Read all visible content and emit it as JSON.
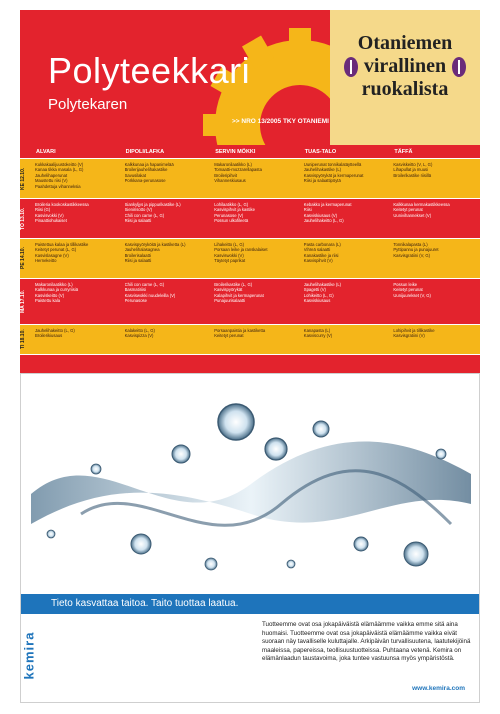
{
  "header": {
    "title": "Polyteekkari",
    "subtitle": "Polytekaren",
    "issue": ">> NRO 13/2005 TKY OTANIEMI",
    "right_box": {
      "line1": "Otaniemen",
      "line2": "virallinen",
      "line3": "ruokalista"
    }
  },
  "menu": {
    "columns": [
      "ALVARI",
      "DIPOLI/LAFKA",
      "SERVIN MÖKKI",
      "TUAS-TALO",
      "TÄFFÄ"
    ],
    "rows": [
      {
        "day": "KE 12.10.",
        "cells": [
          [
            "Kukkakaalijuustokeitto (V)",
            "Kanaa tikka masala (L, G)",
            "Jauhelihaperunat",
            "Maustettu riisi (V)",
            "Paahdettuja vihanneksia"
          ],
          [
            "Kalkkunaa ja hapanimelää",
            "Broilerijauhelihakastike",
            "Savusilakat",
            "Porkkana-perunasose"
          ],
          [
            "Makaronilaatikko (L)",
            "Tomaatti-mozzarellapasta",
            "Broileripihvit",
            "Vihanneskiusaus"
          ],
          [
            "Uuniperunat tonnikalatäytteellä",
            "Jauhelihakastike (L)",
            "Kasvispyörykät ja kermaperunat",
            "Riisi ja salaattipöytä"
          ],
          [
            "Kasviskeitto (V, L, G)",
            "Lihapullat ja muusi",
            "Broilerikastike riisillä"
          ]
        ]
      },
      {
        "day": "TO 13.10.",
        "cells": [
          [
            "Broileria kookoskastikkeessa",
            "Riisi (G)",
            "Kasvisvokki (V)",
            "Pinaattiohukaiset"
          ],
          [
            "Siankyljys ja pippurikastike (L)",
            "Sienirisotto (V)",
            "Chili con carne (L, G)",
            "Riisi ja salaatti"
          ],
          [
            "Lohilaatikko (L, G)",
            "Kasvispihvit ja kastike",
            "Perunasose (V)",
            "Possun ulkofileetä"
          ],
          [
            "Kebakko ja kermaperunat",
            "Riisi",
            "Kasviskiusaus (V)",
            "Jauhelihakeitto (L, G)"
          ],
          [
            "Kalkkunaa kermakastikkeessa",
            "Keitetyt perunat",
            "Uunivihannekset (V)"
          ]
        ]
      },
      {
        "day": "PE 14.10.",
        "cells": [
          [
            "Paistettua kalaa ja tillikastike",
            "Keitetyt perunat (L, G)",
            "Kasvislasagne (V)",
            "Hernekeitto"
          ],
          [
            "Kasvispyöryköitä ja kastiketta (L)",
            "Jauhelihalasagnea",
            "Broilerisalaatti",
            "Riisi ja salaatti"
          ],
          [
            "Lihakeitto (L, G)",
            "Porsaan leike ja ranskalaiset",
            "Kasviswokki (V)",
            "Täytetyt paprikat"
          ],
          [
            "Pasta carbonara (L)",
            "Vihreä salaatti",
            "Kanakastike ja riisi",
            "Kasvispihvit (V)"
          ],
          [
            "Tonnikalapasta (L)",
            "Pyttipannu ja punajuuret",
            "Kasvisgratiini (V, G)"
          ]
        ]
      },
      {
        "day": "MA 17.10.",
        "cells": [
          [
            "Makaronilaatikko (L)",
            "Kalkkunaa ja curryriisiä",
            "Kasviskeitto (V)",
            "Paistettu kala"
          ],
          [
            "Chili con carne (L, G)",
            "Basmatiriisi",
            "Kasviswokki nuudeleilla (V)",
            "Perunasose"
          ],
          [
            "Broilerikastike (L, G)",
            "Kasvispyörykät",
            "Kalapihvit ja kermaperunat",
            "Punajuurisalaatti"
          ],
          [
            "Jauhelihakastike (L)",
            "Spagetti (V)",
            "Lohikeitto (L, G)",
            "Kasviskiusaus"
          ],
          [
            "Possun leike",
            "Keitetyt perunat",
            "Uunijuurekset (V, G)"
          ]
        ]
      },
      {
        "day": "TI 18.10.",
        "cells": [
          [
            "Jauhelihakeitto (L, G)",
            "Broilerikiusaus"
          ],
          [
            "Kalakeitto (L, G)",
            "Kasvispizza (V)"
          ],
          [
            "Porsaanpaistia ja kastiketta",
            "Keitetyt perunat"
          ],
          [
            "Kanapasta (L)",
            "Kasviscurry (V)"
          ],
          [
            "Lohipihvit ja tillikastike",
            "Kasvisgratiini (V)"
          ]
        ]
      }
    ]
  },
  "ad": {
    "tagline": "Tieto kasvattaa taitoa. Taito tuottaa laatua.",
    "logo_text": "kemira",
    "body": "Tuotteemme ovat osa jokapäiväistä elämäämme vaikka emme sitä aina huomaisi. Tuotteemme ovat osa jokapäiväistä elämäämme vaikka eivät suoraan näy tavalliselle kuluttajalle. Arkipäivän turvallisuutena, laatutekijöinä maaleissa, papereissa, teollisuustuotteissa. Puhtaana vetenä. Kemira on elämänlaadun taustavoima, joka tuntee vastuunsa myös ympäristöstä.",
    "url": "www.kemira.com",
    "colors": {
      "brand_blue": "#1e74bb"
    }
  },
  "colors": {
    "red": "#e3232d",
    "yellow": "#f5b619",
    "cream": "#f5d98a"
  }
}
